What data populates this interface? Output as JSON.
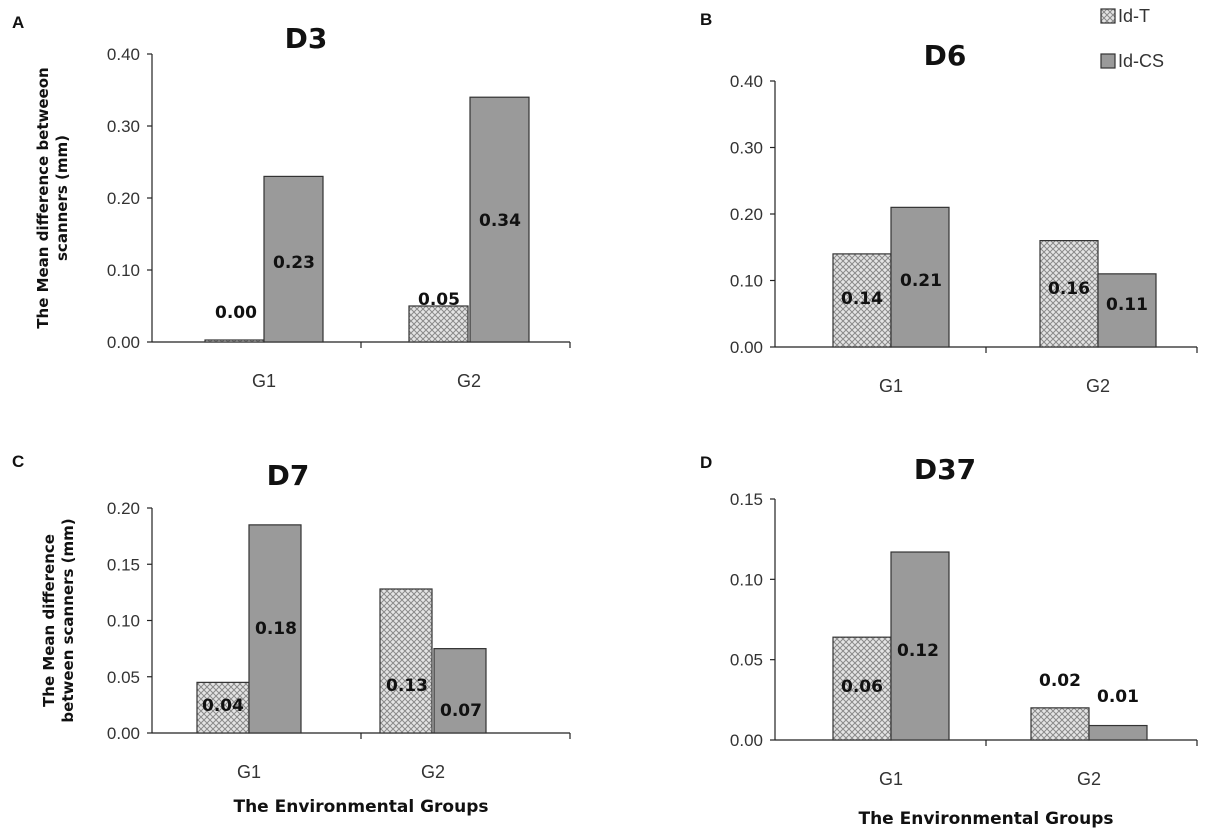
{
  "legend": {
    "items": [
      {
        "label": "Id-T",
        "pattern": "hatch",
        "color": "#d0d0d0"
      },
      {
        "label": "Id-CS",
        "pattern": "solid",
        "color": "#9a9a9a"
      }
    ]
  },
  "chart_data": [
    {
      "type": "bar",
      "panel": "A",
      "title": "D3",
      "ylabel": "The Mean difference betweeon scanners (mm)",
      "xlabel": "",
      "categories": [
        "G1",
        "G2"
      ],
      "ylim": [
        0,
        0.4
      ],
      "yticks": [
        "0.00",
        "0.10",
        "0.20",
        "0.30",
        "0.40"
      ],
      "series": [
        {
          "name": "Id-T",
          "values": [
            0.0,
            0.05
          ],
          "labels": [
            "0.00",
            "0.05"
          ]
        },
        {
          "name": "Id-CS",
          "values": [
            0.23,
            0.34
          ],
          "labels": [
            "0.23",
            "0.34"
          ]
        }
      ]
    },
    {
      "type": "bar",
      "panel": "B",
      "title": "D6",
      "ylabel": "",
      "xlabel": "",
      "categories": [
        "G1",
        "G2"
      ],
      "ylim": [
        0,
        0.4
      ],
      "yticks": [
        "0.00",
        "0.10",
        "0.20",
        "0.30",
        "0.40"
      ],
      "series": [
        {
          "name": "Id-T",
          "values": [
            0.14,
            0.16
          ],
          "labels": [
            "0.14",
            "0.16"
          ]
        },
        {
          "name": "Id-CS",
          "values": [
            0.21,
            0.11
          ],
          "labels": [
            "0.21",
            "0.11"
          ]
        }
      ]
    },
    {
      "type": "bar",
      "panel": "C",
      "title": "D7",
      "ylabel": "The Mean difference between scanners (mm)",
      "xlabel": "The Environmental Groups",
      "categories": [
        "G1",
        "G2"
      ],
      "ylim": [
        0,
        0.2
      ],
      "yticks": [
        "0.00",
        "0.05",
        "0.10",
        "0.15",
        "0.20"
      ],
      "series": [
        {
          "name": "Id-T",
          "values": [
            0.045,
            0.128
          ],
          "labels": [
            "0.04",
            "0.13"
          ]
        },
        {
          "name": "Id-CS",
          "values": [
            0.185,
            0.075
          ],
          "labels": [
            "0.18",
            "0.07"
          ]
        }
      ]
    },
    {
      "type": "bar",
      "panel": "D",
      "title": "D37",
      "ylabel": "",
      "xlabel": "The Environmental Groups",
      "categories": [
        "G1",
        "G2"
      ],
      "ylim": [
        0,
        0.15
      ],
      "yticks": [
        "0.00",
        "0.05",
        "0.10",
        "0.15"
      ],
      "series": [
        {
          "name": "Id-T",
          "values": [
            0.064,
            0.02
          ],
          "labels": [
            "0.06",
            "0.02"
          ]
        },
        {
          "name": "Id-CS",
          "values": [
            0.117,
            0.009
          ],
          "labels": [
            "0.12",
            "0.01"
          ]
        }
      ]
    }
  ]
}
